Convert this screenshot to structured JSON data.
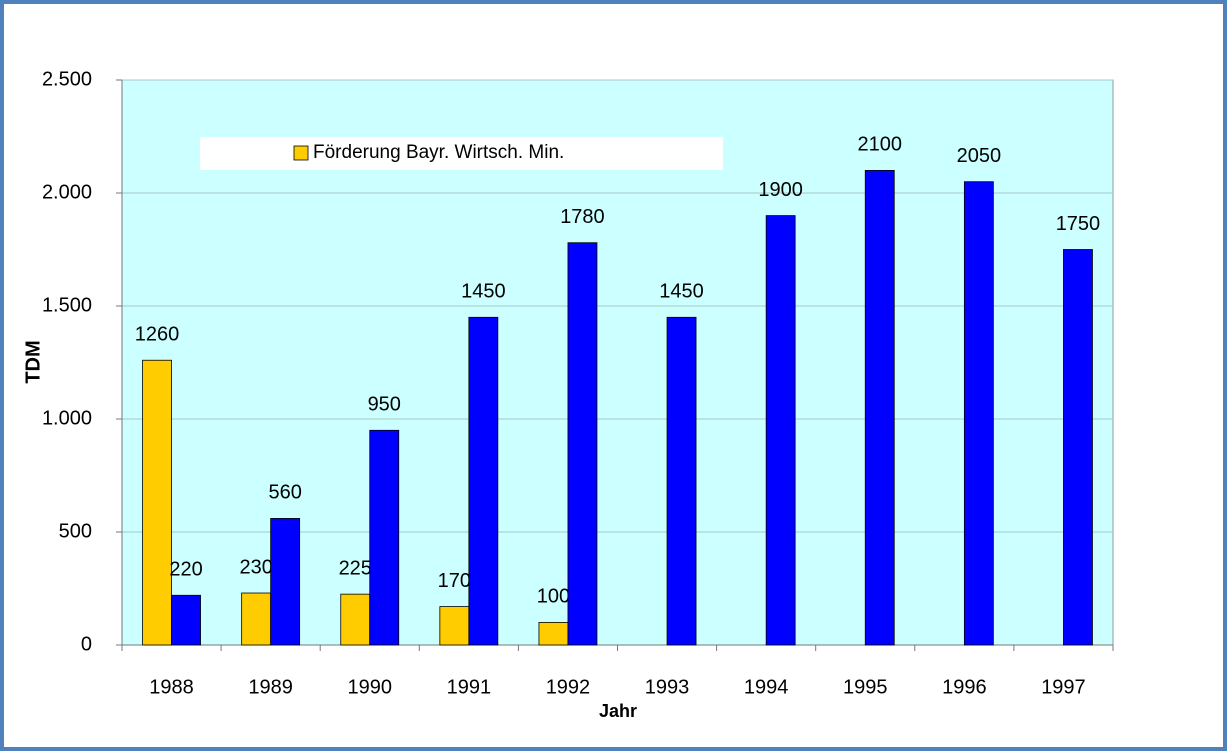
{
  "chart_data": {
    "type": "bar",
    "categories": [
      "1988",
      "1989",
      "1990",
      "1991",
      "1992",
      "1993",
      "1994",
      "1995",
      "1996",
      "1997"
    ],
    "series": [
      {
        "name": "Förderung Bayr. Wirtsch. Min.",
        "color": "#ffcc00",
        "values": [
          1260,
          230,
          225,
          170,
          100,
          null,
          null,
          null,
          null,
          null
        ]
      },
      {
        "color": "#0000ff",
        "values": [
          220,
          560,
          950,
          1450,
          1780,
          1450,
          1900,
          2100,
          2050,
          1750
        ]
      }
    ],
    "ylabel": "TDM",
    "xlabel": "Jahr",
    "ylim": [
      0,
      2500
    ],
    "yticks": [
      0,
      500,
      {
        "value": 1000,
        "label": "1.000"
      },
      {
        "value": 1500,
        "label": "1.500"
      },
      {
        "value": 2000,
        "label": "2.000"
      },
      {
        "value": 2500,
        "label": "2.500"
      }
    ],
    "grid": true,
    "legend": "top-left"
  }
}
